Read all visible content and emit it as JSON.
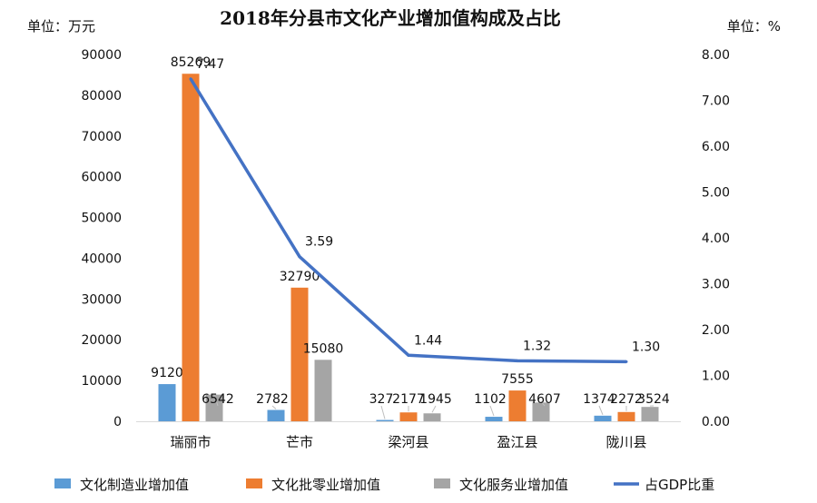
{
  "chart_data": {
    "type": "bar",
    "title": "2018年分县市文化产业增加值构成及占比",
    "ylabel_left": "单位：万元",
    "ylabel_right": "单位：%",
    "categories": [
      "瑞丽市",
      "芒市",
      "梁河县",
      "盈江县",
      "陇川县"
    ],
    "ylim_left": [
      0,
      90000
    ],
    "yticks_left": [
      "0",
      "10000",
      "20000",
      "30000",
      "40000",
      "50000",
      "60000",
      "70000",
      "80000",
      "90000"
    ],
    "ylim_right": [
      0,
      8
    ],
    "yticks_right": [
      "0.00",
      "1.00",
      "2.00",
      "3.00",
      "4.00",
      "5.00",
      "6.00",
      "7.00",
      "8.00"
    ],
    "grid": false,
    "legend_position": "bottom",
    "series": [
      {
        "name": "文化制造业增加值",
        "kind": "bar",
        "axis": "left",
        "color": "#5b9bd5",
        "values": [
          9120,
          2782,
          327,
          1102,
          1374
        ],
        "labels": [
          "9120",
          "2782",
          "327",
          "1102",
          "1374"
        ]
      },
      {
        "name": "文化批零业增加值",
        "kind": "bar",
        "axis": "left",
        "color": "#ed7d31",
        "values": [
          85269,
          32790,
          2177,
          7555,
          2272
        ],
        "labels": [
          "85269",
          "32790",
          "2177",
          "7555",
          "2272"
        ]
      },
      {
        "name": "文化服务业增加值",
        "kind": "bar",
        "axis": "left",
        "color": "#a5a5a5",
        "values": [
          6542,
          15080,
          1945,
          4607,
          3524
        ],
        "labels": [
          "6542",
          "15080",
          "1945",
          "4607",
          "3524"
        ]
      },
      {
        "name": "占GDP比重",
        "kind": "line",
        "axis": "right",
        "color": "#4472c4",
        "values": [
          7.47,
          3.59,
          1.44,
          1.32,
          1.3
        ],
        "labels": [
          "7.47",
          "3.59",
          "1.44",
          "1.32",
          "1.30"
        ]
      }
    ]
  }
}
